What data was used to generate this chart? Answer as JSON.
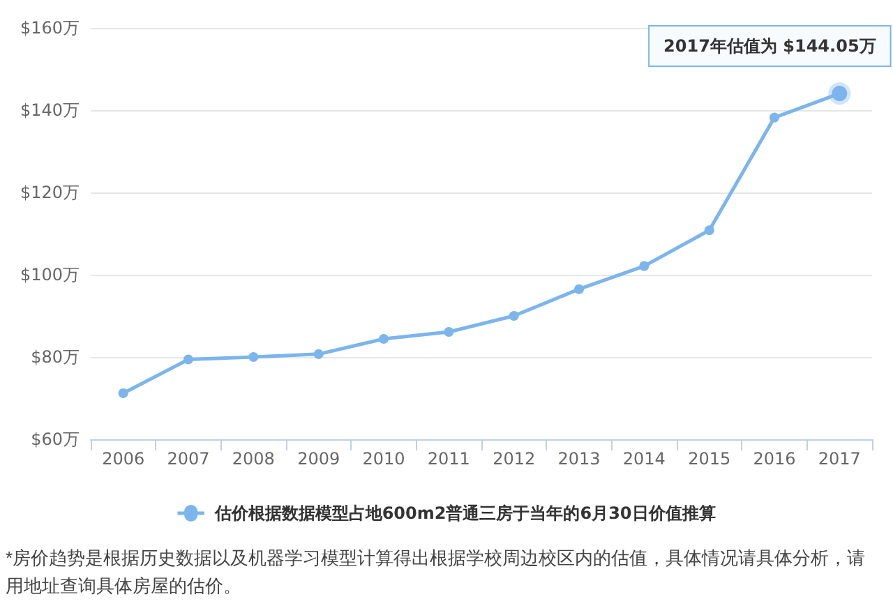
{
  "chart_data": {
    "type": "line",
    "categories": [
      "2006",
      "2007",
      "2008",
      "2009",
      "2010",
      "2011",
      "2012",
      "2013",
      "2014",
      "2015",
      "2016",
      "2017"
    ],
    "series": [
      {
        "name": "估价根据数据模型占地600m2普通三房于当年的6月30日价值推算",
        "color": "#7cb5ec",
        "values": [
          71.2,
          79.4,
          80.0,
          80.7,
          84.4,
          86.1,
          90.0,
          96.5,
          102.1,
          110.8,
          138.2,
          144.05
        ]
      }
    ],
    "ylim": [
      60,
      160
    ],
    "yticks": [
      {
        "value": 60,
        "label": "$60万"
      },
      {
        "value": 80,
        "label": "$80万"
      },
      {
        "value": 100,
        "label": "$100万"
      },
      {
        "value": 120,
        "label": "$120万"
      },
      {
        "value": 140,
        "label": "$140万"
      },
      {
        "value": 160,
        "label": "$160万"
      }
    ],
    "grid": "y",
    "legend": "bottom",
    "marker": "circle",
    "line_style": "solid",
    "annotations": [
      {
        "text": "2017年估值为 $144.05万",
        "x": "2017",
        "y": 144.05
      },
      "*房价趋势是根据历史数据以及机器学习模型计算得出根据学校周边校区内的估值，具体情况请具体分析，请用地址查询具体房屋的估价。"
    ]
  }
}
